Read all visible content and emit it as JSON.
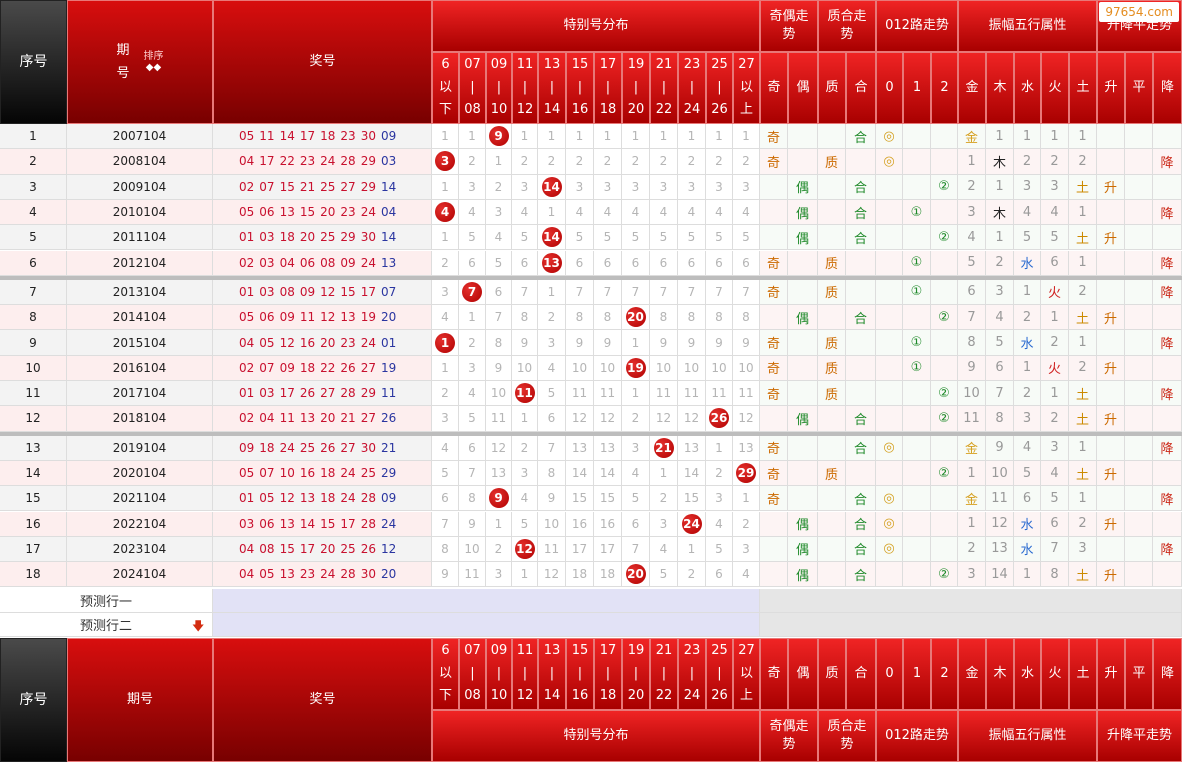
{
  "site": {
    "watermark": "97654.com"
  },
  "header": {
    "index_label": "序号",
    "period_label_lines": [
      "期",
      "号"
    ],
    "sort_label": "排序",
    "sort_arrows": "◆◆",
    "period_label": "期号",
    "prize_label": "奖号",
    "special_dist_label": "特别号分布",
    "dist_columns": [
      [
        "6",
        "以",
        "下"
      ],
      [
        "07",
        "|",
        "08"
      ],
      [
        "09",
        "|",
        "10"
      ],
      [
        "11",
        "|",
        "12"
      ],
      [
        "13",
        "|",
        "14"
      ],
      [
        "15",
        "|",
        "16"
      ],
      [
        "17",
        "|",
        "18"
      ],
      [
        "19",
        "|",
        "20"
      ],
      [
        "21",
        "|",
        "22"
      ],
      [
        "23",
        "|",
        "24"
      ],
      [
        "25",
        "|",
        "26"
      ],
      [
        "27",
        "以",
        "上"
      ]
    ],
    "groups": [
      {
        "label": [
          "奇偶走",
          "势"
        ],
        "sub": [
          "奇",
          "偶"
        ]
      },
      {
        "label": [
          "质合走",
          "势"
        ],
        "sub": [
          "质",
          "合"
        ]
      },
      {
        "label": [
          "012路走势"
        ],
        "sub": [
          "0",
          "1",
          "2"
        ]
      },
      {
        "label": [
          "振幅五行属性"
        ],
        "sub": [
          "金",
          "木",
          "水",
          "火",
          "土"
        ]
      },
      {
        "label": [
          "升降平走势"
        ],
        "sub": [
          "升",
          "平",
          "降"
        ]
      }
    ]
  },
  "predict_rows": [
    "预测行一",
    "预测行二"
  ],
  "predict_arrow": "🡇",
  "colors": {
    "blue_num": "#2a35a0",
    "red_num": "#c8102e",
    "odd_mark": "#cc6a00",
    "even_mark": "#1f8a2a",
    "prime_mark": "#cc6a00",
    "composite_mark": "#1f8a2a",
    "route_mark": "#1f8a2a",
    "up_mark": "#cc6a00",
    "down_mark": "#cc2a1a",
    "metal": "#d6a020",
    "wood": "#222222",
    "water": "#2a6ad0",
    "fire": "#d02020",
    "earth": "#cc8a00"
  },
  "rows": [
    {
      "idx": "1",
      "period": "2007104",
      "reds": [
        "05",
        "11",
        "14",
        "17",
        "18",
        "23",
        "30"
      ],
      "blue": "09",
      "dist": [
        "1",
        "1",
        "9",
        "1",
        "1",
        "1",
        "1",
        "1",
        "1",
        "1",
        "1",
        "1"
      ],
      "hit": 2,
      "oe": [
        "奇",
        ""
      ],
      "pc": [
        "",
        "合"
      ],
      "route": [
        "◎",
        "",
        ""
      ],
      "amp": [
        "金",
        "1",
        "1",
        "1",
        "1"
      ],
      "trend": [
        "",
        "",
        ""
      ]
    },
    {
      "idx": "2",
      "period": "2008104",
      "reds": [
        "04",
        "17",
        "22",
        "23",
        "24",
        "28",
        "29"
      ],
      "blue": "03",
      "dist": [
        "3",
        "2",
        "1",
        "2",
        "2",
        "2",
        "2",
        "2",
        "2",
        "2",
        "2",
        "2"
      ],
      "hit": 0,
      "oe": [
        "奇",
        ""
      ],
      "pc": [
        "质",
        ""
      ],
      "route": [
        "◎",
        "",
        ""
      ],
      "amp": [
        "1",
        "木",
        "2",
        "2",
        "2"
      ],
      "trend": [
        "",
        "",
        "降"
      ]
    },
    {
      "idx": "3",
      "period": "2009104",
      "reds": [
        "02",
        "07",
        "15",
        "21",
        "25",
        "27",
        "29"
      ],
      "blue": "14",
      "dist": [
        "1",
        "3",
        "2",
        "3",
        "14",
        "3",
        "3",
        "3",
        "3",
        "3",
        "3",
        "3"
      ],
      "hit": 4,
      "oe": [
        "",
        "偶"
      ],
      "pc": [
        "",
        "合"
      ],
      "route": [
        "",
        "",
        "②"
      ],
      "amp": [
        "2",
        "1",
        "3",
        "3",
        "土"
      ],
      "trend": [
        "升",
        "",
        ""
      ]
    },
    {
      "idx": "4",
      "period": "2010104",
      "reds": [
        "05",
        "06",
        "13",
        "15",
        "20",
        "23",
        "24"
      ],
      "blue": "04",
      "dist": [
        "4",
        "4",
        "3",
        "4",
        "1",
        "4",
        "4",
        "4",
        "4",
        "4",
        "4",
        "4"
      ],
      "hit": 0,
      "oe": [
        "",
        "偶"
      ],
      "pc": [
        "",
        "合"
      ],
      "route": [
        "",
        "①",
        ""
      ],
      "amp": [
        "3",
        "木",
        "4",
        "4",
        "1"
      ],
      "trend": [
        "",
        "",
        "降"
      ]
    },
    {
      "idx": "5",
      "period": "2011104",
      "reds": [
        "01",
        "03",
        "18",
        "20",
        "25",
        "29",
        "30"
      ],
      "blue": "14",
      "dist": [
        "1",
        "5",
        "4",
        "5",
        "14",
        "5",
        "5",
        "5",
        "5",
        "5",
        "5",
        "5"
      ],
      "hit": 4,
      "oe": [
        "",
        "偶"
      ],
      "pc": [
        "",
        "合"
      ],
      "route": [
        "",
        "",
        "②"
      ],
      "amp": [
        "4",
        "1",
        "5",
        "5",
        "土"
      ],
      "trend": [
        "升",
        "",
        ""
      ]
    },
    {
      "idx": "6",
      "period": "2012104",
      "reds": [
        "02",
        "03",
        "04",
        "06",
        "08",
        "09",
        "24"
      ],
      "blue": "13",
      "dist": [
        "2",
        "6",
        "5",
        "6",
        "13",
        "6",
        "6",
        "6",
        "6",
        "6",
        "6",
        "6"
      ],
      "hit": 4,
      "oe": [
        "奇",
        ""
      ],
      "pc": [
        "质",
        ""
      ],
      "route": [
        "",
        "①",
        ""
      ],
      "amp": [
        "5",
        "2",
        "水",
        "6",
        "1"
      ],
      "trend": [
        "",
        "",
        "降"
      ]
    },
    {
      "idx": "7",
      "period": "2013104",
      "reds": [
        "01",
        "03",
        "08",
        "09",
        "12",
        "15",
        "17"
      ],
      "blue": "07",
      "dist": [
        "3",
        "7",
        "6",
        "7",
        "1",
        "7",
        "7",
        "7",
        "7",
        "7",
        "7",
        "7"
      ],
      "hit": 1,
      "oe": [
        "奇",
        ""
      ],
      "pc": [
        "质",
        ""
      ],
      "route": [
        "",
        "①",
        ""
      ],
      "amp": [
        "6",
        "3",
        "1",
        "火",
        "2"
      ],
      "trend": [
        "",
        "",
        "降"
      ]
    },
    {
      "idx": "8",
      "period": "2014104",
      "reds": [
        "05",
        "06",
        "09",
        "11",
        "12",
        "13",
        "19"
      ],
      "blue": "20",
      "dist": [
        "4",
        "1",
        "7",
        "8",
        "2",
        "8",
        "8",
        "20",
        "8",
        "8",
        "8",
        "8"
      ],
      "hit": 7,
      "oe": [
        "",
        "偶"
      ],
      "pc": [
        "",
        "合"
      ],
      "route": [
        "",
        "",
        "②"
      ],
      "amp": [
        "7",
        "4",
        "2",
        "1",
        "土"
      ],
      "trend": [
        "升",
        "",
        ""
      ]
    },
    {
      "idx": "9",
      "period": "2015104",
      "reds": [
        "04",
        "05",
        "12",
        "16",
        "20",
        "23",
        "24"
      ],
      "blue": "01",
      "dist": [
        "1",
        "2",
        "8",
        "9",
        "3",
        "9",
        "9",
        "1",
        "9",
        "9",
        "9",
        "9"
      ],
      "hit": 0,
      "oe": [
        "奇",
        ""
      ],
      "pc": [
        "质",
        ""
      ],
      "route": [
        "",
        "①",
        ""
      ],
      "amp": [
        "8",
        "5",
        "水",
        "2",
        "1"
      ],
      "trend": [
        "",
        "",
        "降"
      ]
    },
    {
      "idx": "10",
      "period": "2016104",
      "reds": [
        "02",
        "07",
        "09",
        "18",
        "22",
        "26",
        "27"
      ],
      "blue": "19",
      "dist": [
        "1",
        "3",
        "9",
        "10",
        "4",
        "10",
        "10",
        "19",
        "10",
        "10",
        "10",
        "10"
      ],
      "hit": 7,
      "oe": [
        "奇",
        ""
      ],
      "pc": [
        "质",
        ""
      ],
      "route": [
        "",
        "①",
        ""
      ],
      "amp": [
        "9",
        "6",
        "1",
        "火",
        "2"
      ],
      "trend": [
        "升",
        "",
        ""
      ]
    },
    {
      "idx": "11",
      "period": "2017104",
      "reds": [
        "01",
        "03",
        "17",
        "26",
        "27",
        "28",
        "29"
      ],
      "blue": "11",
      "dist": [
        "2",
        "4",
        "10",
        "11",
        "5",
        "11",
        "11",
        "1",
        "11",
        "11",
        "11",
        "11"
      ],
      "hit": 3,
      "oe": [
        "奇",
        ""
      ],
      "pc": [
        "质",
        ""
      ],
      "route": [
        "",
        "",
        "②"
      ],
      "amp": [
        "10",
        "7",
        "2",
        "1",
        "土"
      ],
      "trend": [
        "",
        "",
        "降"
      ]
    },
    {
      "idx": "12",
      "period": "2018104",
      "reds": [
        "02",
        "04",
        "11",
        "13",
        "20",
        "21",
        "27"
      ],
      "blue": "26",
      "dist": [
        "3",
        "5",
        "11",
        "1",
        "6",
        "12",
        "12",
        "2",
        "12",
        "12",
        "26",
        "12"
      ],
      "hit": 10,
      "oe": [
        "",
        "偶"
      ],
      "pc": [
        "",
        "合"
      ],
      "route": [
        "",
        "",
        "②"
      ],
      "amp": [
        "11",
        "8",
        "3",
        "2",
        "土"
      ],
      "trend": [
        "升",
        "",
        ""
      ]
    },
    {
      "idx": "13",
      "period": "2019104",
      "reds": [
        "09",
        "18",
        "24",
        "25",
        "26",
        "27",
        "30"
      ],
      "blue": "21",
      "dist": [
        "4",
        "6",
        "12",
        "2",
        "7",
        "13",
        "13",
        "3",
        "21",
        "13",
        "1",
        "13"
      ],
      "hit": 8,
      "oe": [
        "奇",
        ""
      ],
      "pc": [
        "",
        "合"
      ],
      "route": [
        "◎",
        "",
        ""
      ],
      "amp": [
        "金",
        "9",
        "4",
        "3",
        "1"
      ],
      "trend": [
        "",
        "",
        "降"
      ]
    },
    {
      "idx": "14",
      "period": "2020104",
      "reds": [
        "05",
        "07",
        "10",
        "16",
        "18",
        "24",
        "25"
      ],
      "blue": "29",
      "dist": [
        "5",
        "7",
        "13",
        "3",
        "8",
        "14",
        "14",
        "4",
        "1",
        "14",
        "2",
        "29"
      ],
      "hit": 11,
      "oe": [
        "奇",
        ""
      ],
      "pc": [
        "质",
        ""
      ],
      "route": [
        "",
        "",
        "②"
      ],
      "amp": [
        "1",
        "10",
        "5",
        "4",
        "土"
      ],
      "trend": [
        "升",
        "",
        ""
      ]
    },
    {
      "idx": "15",
      "period": "2021104",
      "reds": [
        "01",
        "05",
        "12",
        "13",
        "18",
        "24",
        "28"
      ],
      "blue": "09",
      "dist": [
        "6",
        "8",
        "9",
        "4",
        "9",
        "15",
        "15",
        "5",
        "2",
        "15",
        "3",
        "1"
      ],
      "hit": 2,
      "oe": [
        "奇",
        ""
      ],
      "pc": [
        "",
        "合"
      ],
      "route": [
        "◎",
        "",
        ""
      ],
      "amp": [
        "金",
        "11",
        "6",
        "5",
        "1"
      ],
      "trend": [
        "",
        "",
        "降"
      ]
    },
    {
      "idx": "16",
      "period": "2022104",
      "reds": [
        "03",
        "06",
        "13",
        "14",
        "15",
        "17",
        "28"
      ],
      "blue": "24",
      "dist": [
        "7",
        "9",
        "1",
        "5",
        "10",
        "16",
        "16",
        "6",
        "3",
        "24",
        "4",
        "2"
      ],
      "hit": 9,
      "oe": [
        "",
        "偶"
      ],
      "pc": [
        "",
        "合"
      ],
      "route": [
        "◎",
        "",
        ""
      ],
      "amp": [
        "1",
        "12",
        "水",
        "6",
        "2"
      ],
      "trend": [
        "升",
        "",
        ""
      ]
    },
    {
      "idx": "17",
      "period": "2023104",
      "reds": [
        "04",
        "08",
        "15",
        "17",
        "20",
        "25",
        "26"
      ],
      "blue": "12",
      "dist": [
        "8",
        "10",
        "2",
        "12",
        "11",
        "17",
        "17",
        "7",
        "4",
        "1",
        "5",
        "3"
      ],
      "hit": 3,
      "oe": [
        "",
        "偶"
      ],
      "pc": [
        "",
        "合"
      ],
      "route": [
        "◎",
        "",
        ""
      ],
      "amp": [
        "2",
        "13",
        "水",
        "7",
        "3"
      ],
      "trend": [
        "",
        "",
        "降"
      ]
    },
    {
      "idx": "18",
      "period": "2024104",
      "reds": [
        "04",
        "05",
        "13",
        "23",
        "24",
        "28",
        "30"
      ],
      "blue": "20",
      "dist": [
        "9",
        "11",
        "3",
        "1",
        "12",
        "18",
        "18",
        "20",
        "5",
        "2",
        "6",
        "4"
      ],
      "hit": 7,
      "oe": [
        "",
        "偶"
      ],
      "pc": [
        "",
        "合"
      ],
      "route": [
        "",
        "",
        "②"
      ],
      "amp": [
        "3",
        "14",
        "1",
        "8",
        "土"
      ],
      "trend": [
        "升",
        "",
        ""
      ]
    }
  ]
}
